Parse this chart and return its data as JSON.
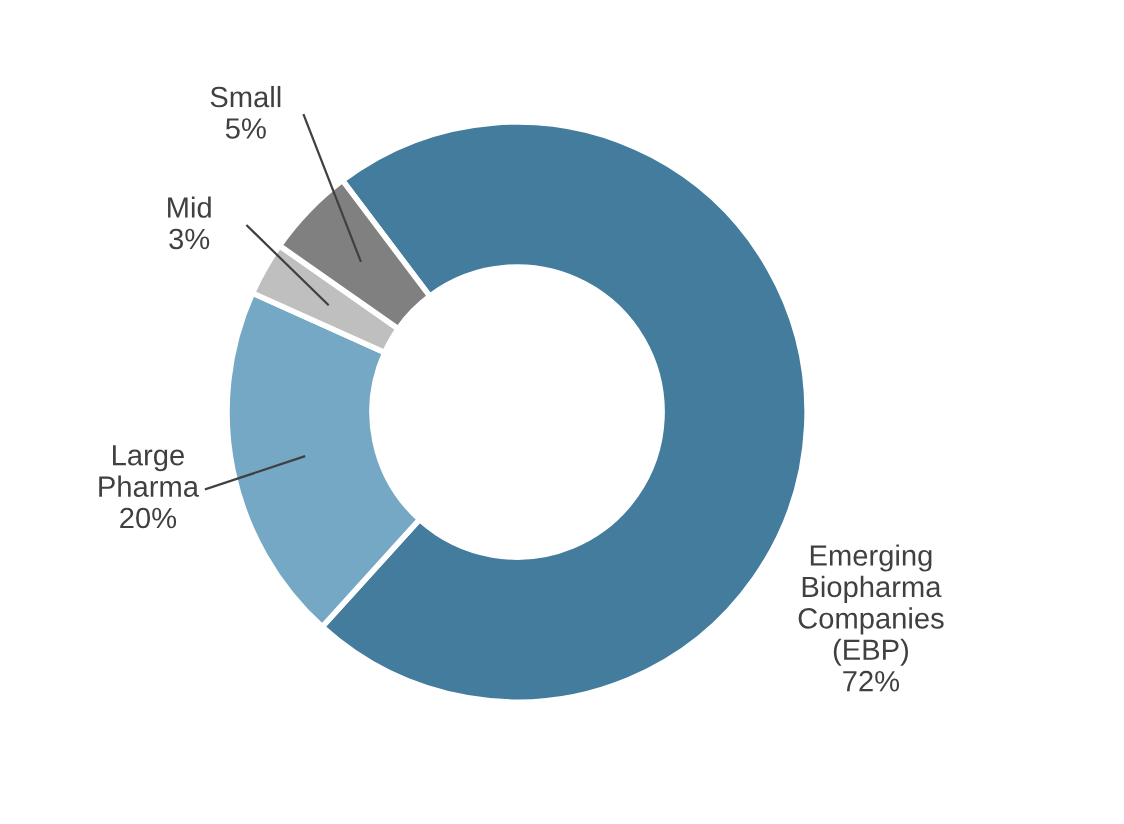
{
  "chart_data": {
    "type": "donut",
    "categories": [
      "Emerging\nBiopharma\nCompanies\n(EBP)",
      "Large\nPharma",
      "Mid",
      "Small"
    ],
    "values": [
      72,
      20,
      3,
      5
    ],
    "value_labels": [
      "72%",
      "20%",
      "3%",
      "5%"
    ],
    "colors": [
      "#437c9c",
      "#74a8c5",
      "#bfbfbf",
      "#808080"
    ],
    "legend": false
  }
}
